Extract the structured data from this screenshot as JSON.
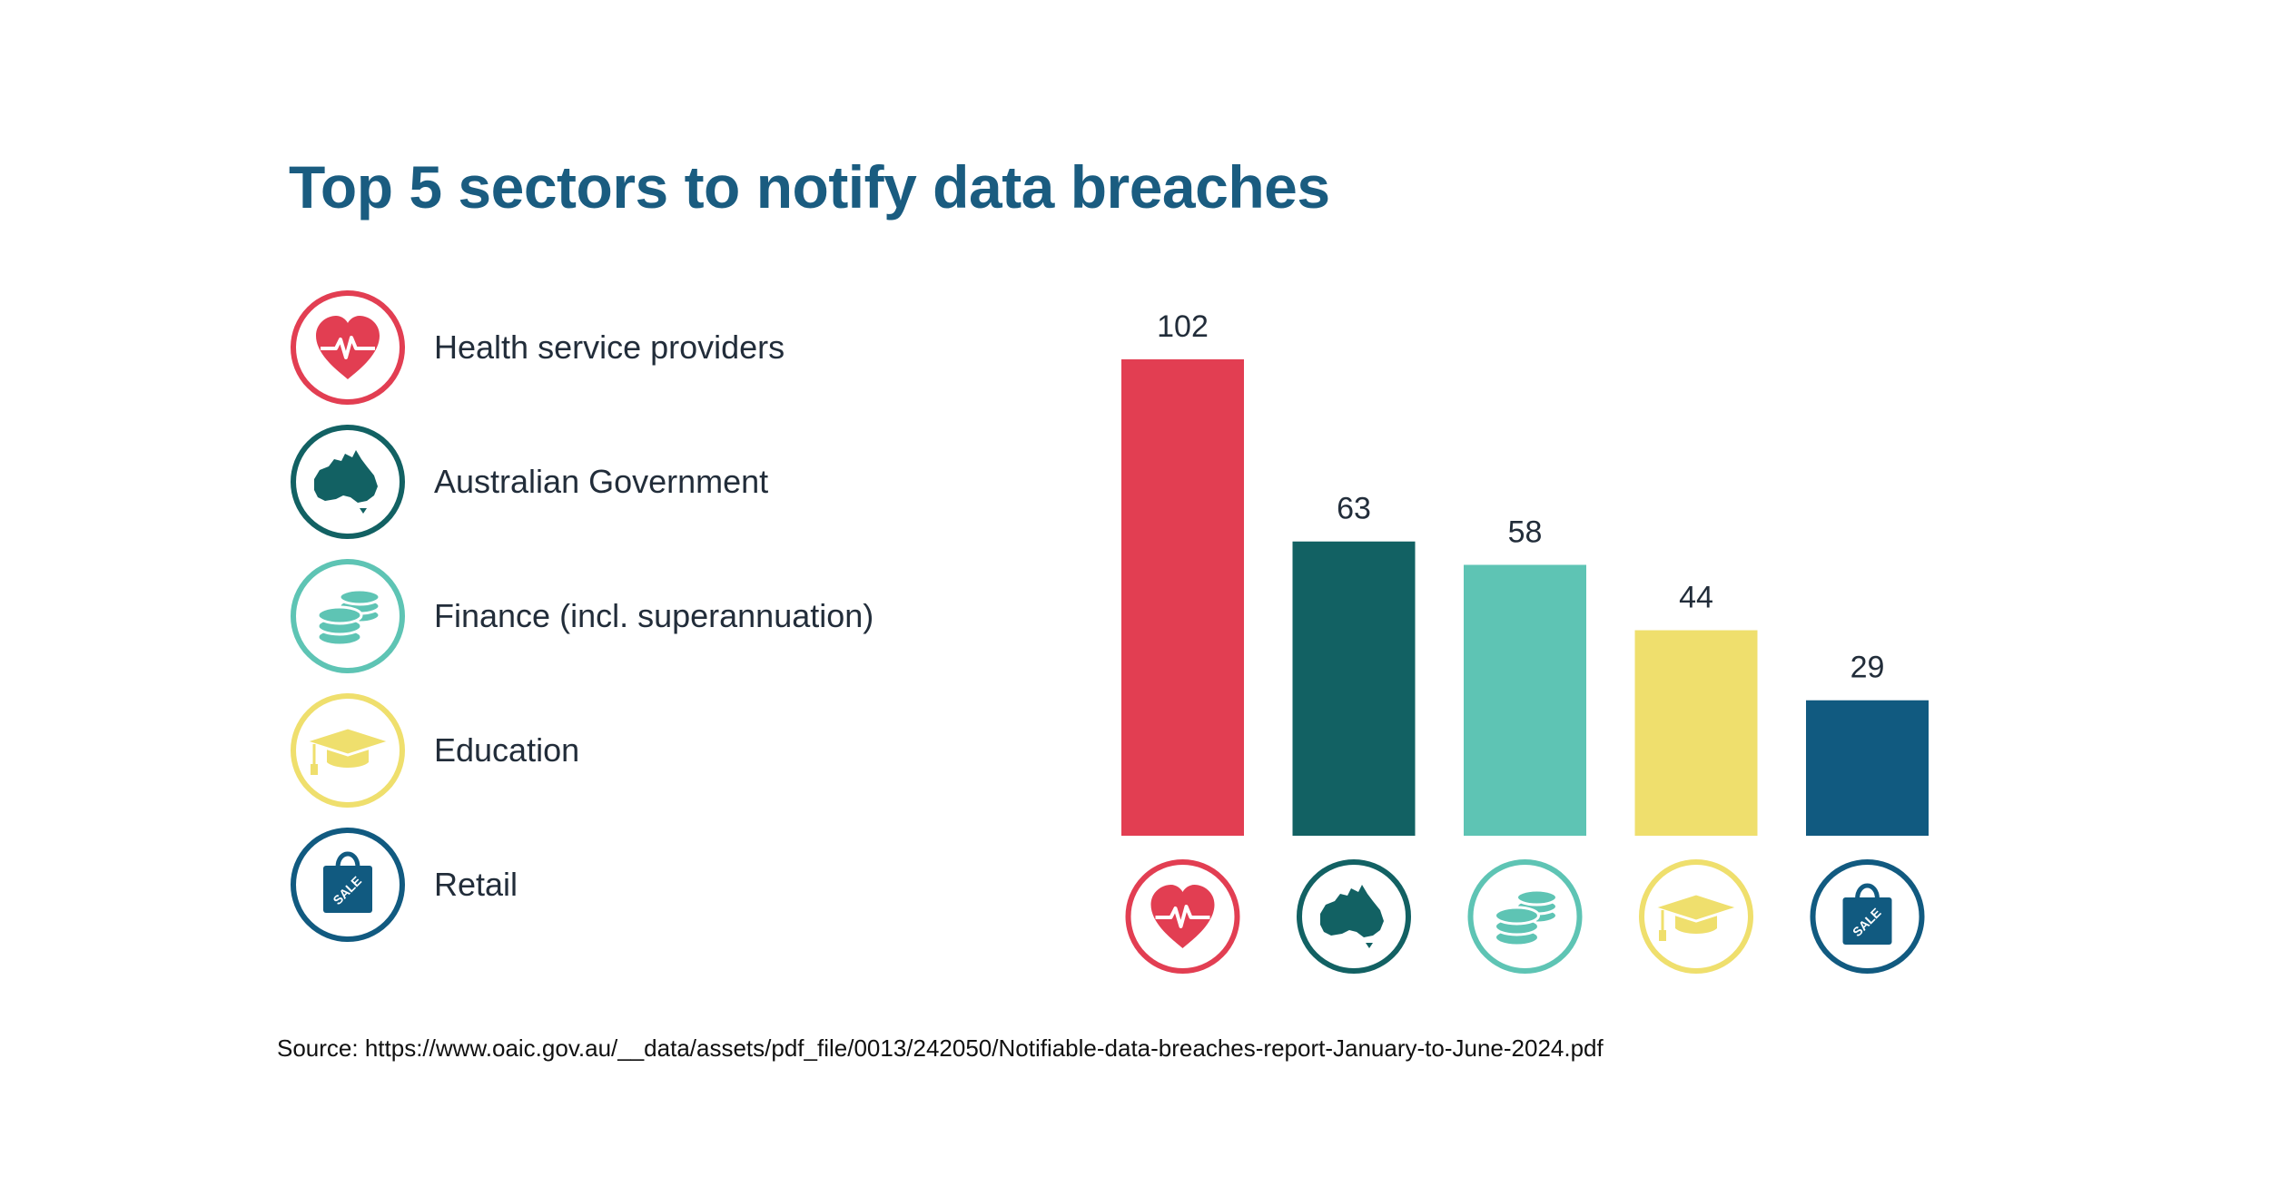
{
  "chart_data": {
    "type": "bar",
    "title": "Top 5 sectors to notify data breaches",
    "categories": [
      "Health service providers",
      "Australian Government",
      "Finance (incl. superannuation)",
      "Education",
      "Retail"
    ],
    "values": [
      102,
      63,
      58,
      44,
      29
    ],
    "colors": [
      "#e23e52",
      "#126163",
      "#5ec4b4",
      "#efdf6d",
      "#115a80"
    ],
    "icons": [
      "heart-icon",
      "australia-map-icon",
      "coins-icon",
      "graduation-cap-icon",
      "shopping-bag-icon"
    ],
    "icon_texts": {
      "shopping-bag-icon": "SALE"
    },
    "xlabel": "",
    "ylabel": "",
    "ylim": [
      0,
      102
    ],
    "show_value_labels": true,
    "legend_position": "left"
  },
  "source": "Source: https://www.oaic.gov.au/__data/assets/pdf_file/0013/242050/Notifiable-data-breaches-report-January-to-June-2024.pdf"
}
